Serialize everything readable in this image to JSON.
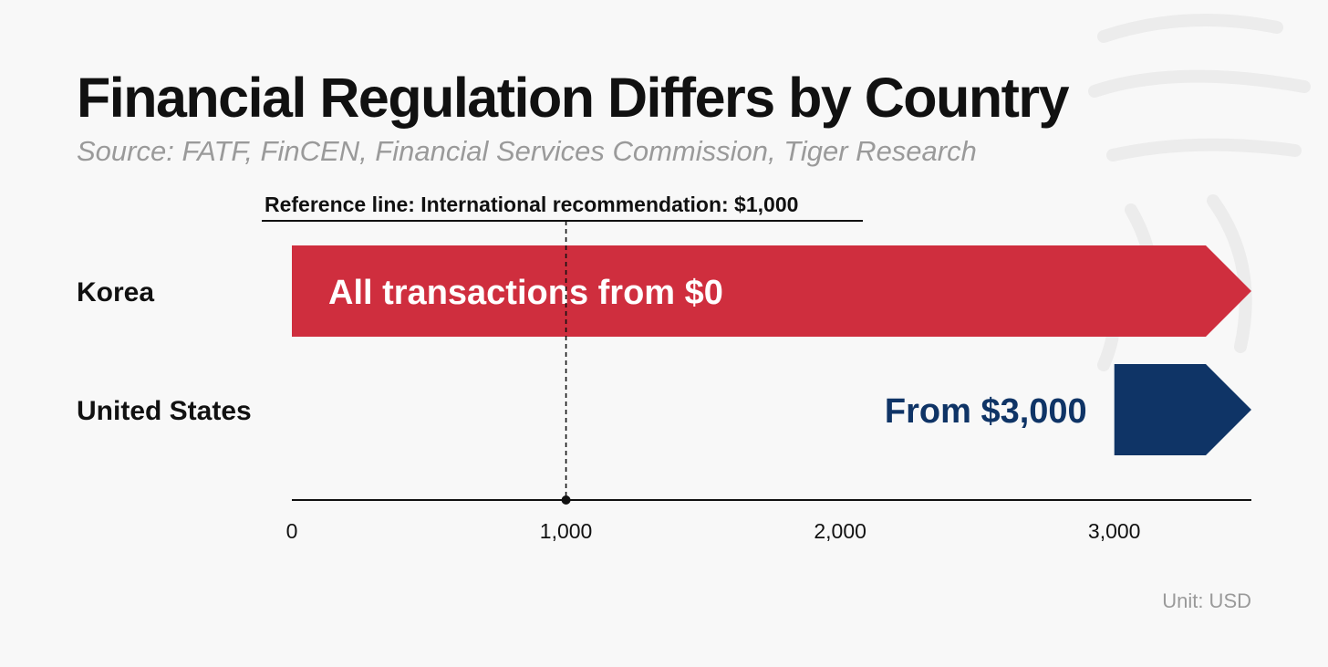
{
  "header": {
    "title": "Financial Regulation Differs by Country",
    "source": "Source: FATF, FinCEN, Financial Services Commission, Tiger Research"
  },
  "footer": {
    "unit": "Unit: USD"
  },
  "colors": {
    "korea": "#cf2e3e",
    "us": "#0f3466",
    "text": "#111111",
    "muted": "#9a9a9a"
  },
  "chart_data": {
    "type": "bar",
    "orientation": "horizontal",
    "categories": [
      "Korea",
      "United States"
    ],
    "series": [
      {
        "values": [
          0,
          3000
        ],
        "bar_labels": [
          "All transactions from $0",
          "From $3,000"
        ]
      }
    ],
    "xlim": [
      0,
      3500
    ],
    "xticks": [
      0,
      1000,
      2000,
      3000
    ],
    "xtick_labels": [
      "0",
      "1,000",
      "2,000",
      "3,000"
    ],
    "reference_line": {
      "value": 1000,
      "label": "Reference line: International recommendation: $1,000"
    },
    "bar_colors": [
      "#cf2e3e",
      "#0f3466"
    ],
    "grid": false
  }
}
